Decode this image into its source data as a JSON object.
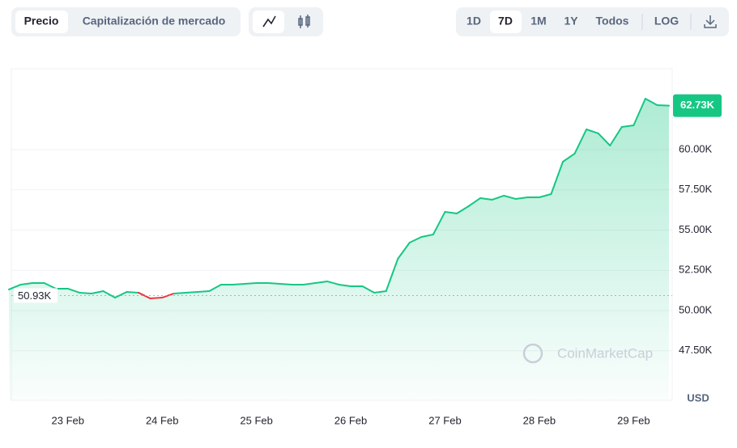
{
  "toolbar": {
    "metric_tabs": [
      "Precio",
      "Capitalización de mercado"
    ],
    "range_tabs": [
      "1D",
      "7D",
      "1M",
      "1Y",
      "Todos",
      "LOG"
    ]
  },
  "chart_data": {
    "type": "line",
    "watermark": "CoinMarketCap",
    "y_unit": "USD",
    "categories": [
      null,
      null,
      null,
      null,
      null,
      "23 Feb",
      null,
      null,
      null,
      null,
      null,
      null,
      null,
      "24 Feb",
      null,
      null,
      null,
      null,
      null,
      null,
      null,
      "25 Feb",
      null,
      null,
      null,
      null,
      null,
      null,
      null,
      "26 Feb",
      null,
      null,
      null,
      null,
      null,
      null,
      null,
      "27 Feb",
      null,
      null,
      null,
      null,
      null,
      null,
      null,
      "28 Feb",
      null,
      null,
      null,
      null,
      null,
      null,
      null,
      "29 Feb",
      null,
      null,
      null
    ],
    "series": [
      {
        "color": "#16c784",
        "below_color": "#ea3943",
        "values": [
          51307,
          51608,
          51708,
          51708,
          51357,
          51357,
          51106,
          51055,
          51206,
          50800,
          51156,
          51106,
          50750,
          50800,
          51055,
          51106,
          51156,
          51206,
          51608,
          51608,
          51658,
          51708,
          51708,
          51658,
          51608,
          51608,
          51708,
          51809,
          51608,
          51508,
          51508,
          51106,
          51206,
          53216,
          54221,
          54573,
          54724,
          56131,
          56030,
          56482,
          56985,
          56884,
          57136,
          56935,
          57035,
          57035,
          57236,
          59246,
          59749,
          61256,
          61005,
          60251,
          61407,
          61508,
          63166,
          62764,
          62730
        ]
      }
    ],
    "reference_line": {
      "value": 50930,
      "label": "50.93K"
    },
    "last_price": {
      "value": 62730,
      "label": "62.73K"
    },
    "ylim": [
      44420,
      65025
    ],
    "yticks": [
      {
        "value": 47500,
        "label": "47.50K"
      },
      {
        "value": 50000,
        "label": "50.00K"
      },
      {
        "value": 52500,
        "label": "52.50K"
      },
      {
        "value": 55000,
        "label": "55.00K"
      },
      {
        "value": 57500,
        "label": "57.50K"
      },
      {
        "value": 60000,
        "label": "60.00K"
      }
    ],
    "grid": true
  }
}
